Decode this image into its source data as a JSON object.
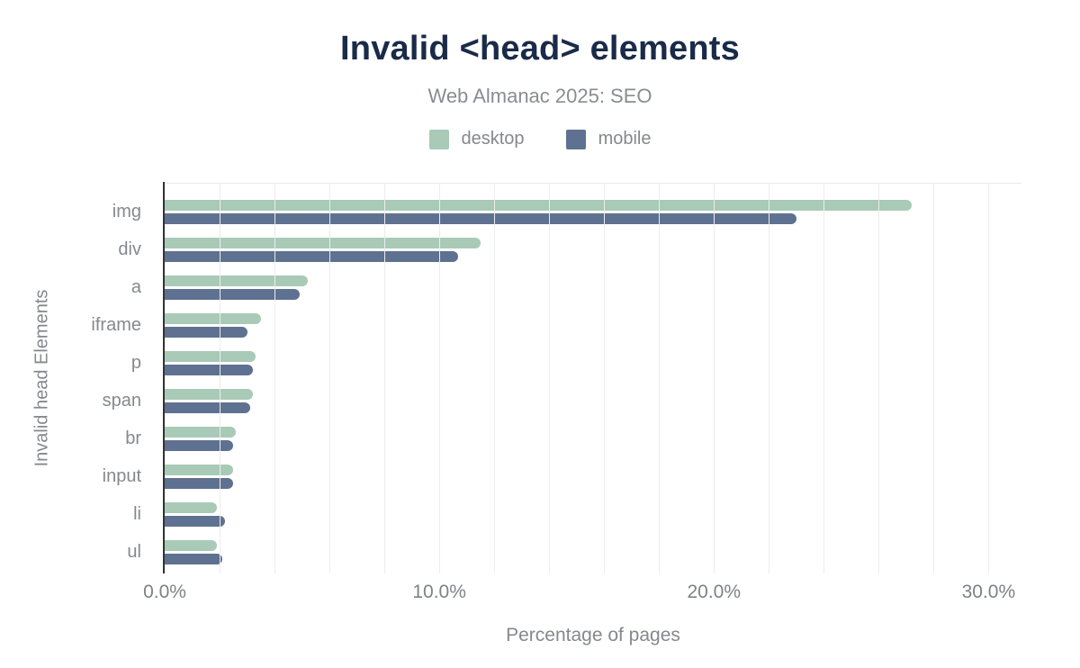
{
  "chart": {
    "title": "Invalid <head> elements",
    "subtitle": "Web Almanac 2025: SEO"
  },
  "colors": {
    "title_navy": "#1a2b49",
    "desktop_green": "#a8cab7",
    "mobile_slate": "#5e7190",
    "axis_dark": "#333333",
    "gridline_gray": "#ededed",
    "text_gray": "#85888e"
  },
  "chart_data": {
    "type": "bar",
    "orientation": "horizontal",
    "title": "Invalid <head> elements",
    "subtitle": "Web Almanac 2025: SEO",
    "xlabel": "Percentage of pages",
    "ylabel": "Invalid head Elements",
    "categories": [
      "img",
      "div",
      "a",
      "iframe",
      "p",
      "span",
      "br",
      "input",
      "li",
      "ul"
    ],
    "series": [
      {
        "name": "desktop",
        "color": "#a8cab7",
        "values": [
          27.2,
          11.5,
          5.2,
          3.5,
          3.3,
          3.2,
          2.6,
          2.5,
          1.9,
          1.9
        ]
      },
      {
        "name": "mobile",
        "color": "#5e7190",
        "values": [
          23.0,
          10.7,
          4.9,
          3.0,
          3.2,
          3.1,
          2.5,
          2.5,
          2.2,
          2.1
        ]
      }
    ],
    "x_ticks": [
      "0.0%",
      "10.0%",
      "20.0%",
      "30.0%"
    ],
    "x_tick_values": [
      0,
      10,
      20,
      30
    ],
    "xlim": [
      0,
      31.2
    ],
    "gridline_step": 2,
    "grid": true,
    "legend_position": "top"
  }
}
